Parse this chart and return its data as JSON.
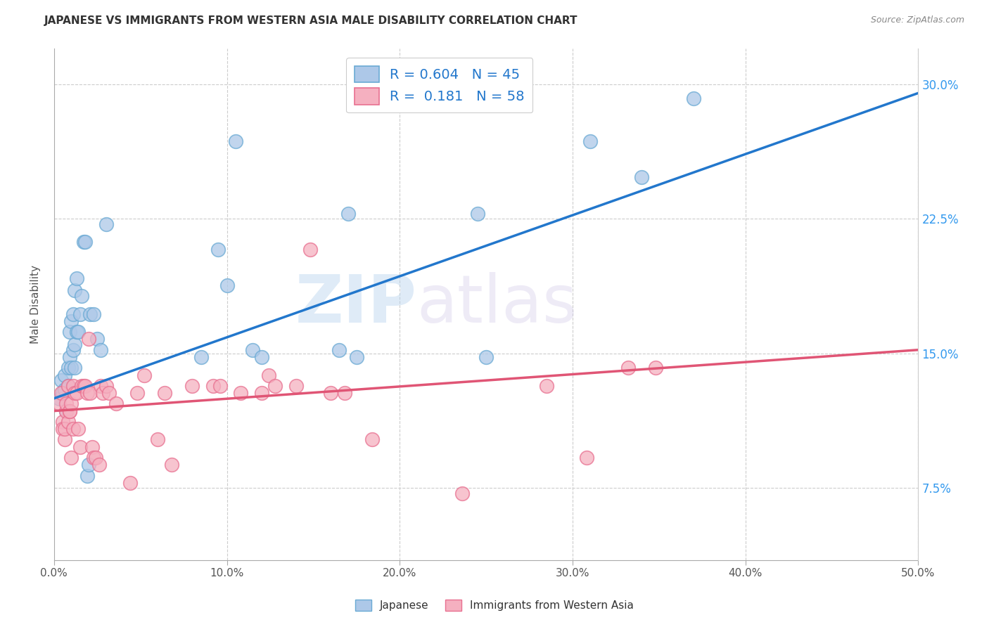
{
  "title": "JAPANESE VS IMMIGRANTS FROM WESTERN ASIA MALE DISABILITY CORRELATION CHART",
  "source": "Source: ZipAtlas.com",
  "xlabel_ticks": [
    "0.0%",
    "10.0%",
    "20.0%",
    "30.0%",
    "40.0%",
    "50.0%"
  ],
  "ylabel_ticks": [
    "7.5%",
    "15.0%",
    "22.5%",
    "30.0%"
  ],
  "ylabel_label": "Male Disability",
  "watermark_zip": "ZIP",
  "watermark_atlas": "atlas",
  "legend_text": [
    "R = 0.604   N = 45",
    "R =  0.181   N = 58"
  ],
  "japanese_color": "#adc8e8",
  "immigrant_color": "#f5b0c0",
  "japanese_edge_color": "#6aaad4",
  "immigrant_edge_color": "#e87090",
  "japanese_line_color": "#2277cc",
  "immigrant_line_color": "#e05575",
  "xlim": [
    0.0,
    0.5
  ],
  "ylim": [
    0.035,
    0.32
  ],
  "background_color": "#ffffff",
  "grid_color": "#cccccc",
  "japanese_x": [
    0.003,
    0.004,
    0.005,
    0.006,
    0.006,
    0.007,
    0.008,
    0.008,
    0.009,
    0.009,
    0.01,
    0.01,
    0.011,
    0.011,
    0.012,
    0.012,
    0.012,
    0.013,
    0.013,
    0.014,
    0.015,
    0.016,
    0.017,
    0.018,
    0.019,
    0.02,
    0.021,
    0.023,
    0.025,
    0.027,
    0.03,
    0.085,
    0.095,
    0.1,
    0.105,
    0.115,
    0.12,
    0.165,
    0.17,
    0.175,
    0.245,
    0.25,
    0.31,
    0.34,
    0.37
  ],
  "japanese_y": [
    0.125,
    0.135,
    0.128,
    0.13,
    0.138,
    0.118,
    0.132,
    0.142,
    0.148,
    0.162,
    0.142,
    0.168,
    0.152,
    0.172,
    0.142,
    0.155,
    0.185,
    0.162,
    0.192,
    0.162,
    0.172,
    0.182,
    0.212,
    0.212,
    0.082,
    0.088,
    0.172,
    0.172,
    0.158,
    0.152,
    0.222,
    0.148,
    0.208,
    0.188,
    0.268,
    0.152,
    0.148,
    0.152,
    0.228,
    0.148,
    0.228,
    0.148,
    0.268,
    0.248,
    0.292
  ],
  "immigrant_x": [
    0.003,
    0.004,
    0.005,
    0.005,
    0.006,
    0.006,
    0.007,
    0.007,
    0.008,
    0.008,
    0.009,
    0.009,
    0.01,
    0.01,
    0.011,
    0.011,
    0.012,
    0.013,
    0.014,
    0.015,
    0.016,
    0.017,
    0.018,
    0.019,
    0.02,
    0.021,
    0.022,
    0.023,
    0.024,
    0.026,
    0.027,
    0.028,
    0.03,
    0.032,
    0.036,
    0.044,
    0.048,
    0.052,
    0.06,
    0.064,
    0.068,
    0.08,
    0.092,
    0.096,
    0.108,
    0.12,
    0.124,
    0.128,
    0.14,
    0.148,
    0.16,
    0.168,
    0.184,
    0.236,
    0.285,
    0.308,
    0.332,
    0.348
  ],
  "immigrant_y": [
    0.122,
    0.128,
    0.112,
    0.108,
    0.102,
    0.108,
    0.118,
    0.122,
    0.132,
    0.112,
    0.118,
    0.118,
    0.122,
    0.092,
    0.132,
    0.108,
    0.128,
    0.128,
    0.108,
    0.098,
    0.132,
    0.132,
    0.132,
    0.128,
    0.158,
    0.128,
    0.098,
    0.092,
    0.092,
    0.088,
    0.132,
    0.128,
    0.132,
    0.128,
    0.122,
    0.078,
    0.128,
    0.138,
    0.102,
    0.128,
    0.088,
    0.132,
    0.132,
    0.132,
    0.128,
    0.128,
    0.138,
    0.132,
    0.132,
    0.208,
    0.128,
    0.128,
    0.102,
    0.072,
    0.132,
    0.092,
    0.142,
    0.142
  ]
}
